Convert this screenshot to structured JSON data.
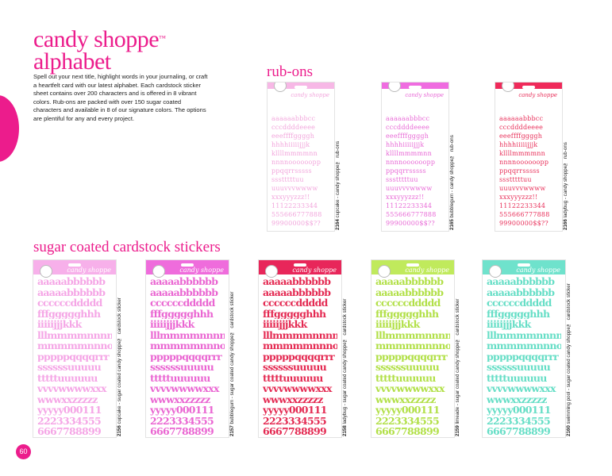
{
  "title_line1": "candy shoppe",
  "title_tm": "™",
  "title_line2": "alphabet",
  "intro": "Spell out your next title, highlight words in your journaling, or craft a heartfelt card with our latest alphabet. Each cardstock sticker sheet contains over 200 characters and is offered in 8 vibrant colors. Rub-ons are packed with over 150 sugar coated characters and available in 8 of our signature colors. The options are plentiful for any and every project.",
  "rubons_heading": "rub-ons",
  "stickers_heading": "sugar coated cardstock stickers",
  "page_number": "60",
  "colors": {
    "accent": "#ec1c8c"
  },
  "rubons": [
    {
      "code": "2164",
      "desc": "cupcake - candy shoppe™ rub-ons",
      "color": "#f2a6dc",
      "header": "#f7b8e6"
    },
    {
      "code": "2165",
      "desc": "bubblegum - candy shoppe™ rub-ons",
      "color": "#e86ad6",
      "header": "#ef6ce0"
    },
    {
      "code": "2166",
      "desc": "ladybug - candy shoppe™ rub-ons",
      "color": "#e8305a",
      "header": "#ef2a5a"
    }
  ],
  "rubon_rows": [
    "aaaaaabbbcc",
    "cccddddeeee",
    "eeeffffggggh",
    "hhhhiiiiijjjk",
    "kllllmmmmnn",
    "nnnnoooooopp",
    "ppqqrrsssss",
    "ssstttttuu",
    "uuuvvvwwww",
    "xxxyyyzzz!!",
    "11122233344",
    "555666777888",
    "99900000$$??"
  ],
  "stickers": [
    {
      "code": "2156",
      "desc": "cupcake - sugar coated candy shoppe™ cardstock sticker",
      "color": "#f5a6e6",
      "header": "#f7b0ea"
    },
    {
      "code": "2157",
      "desc": "bubblegum - sugar coated candy shoppe™ cardstock sticker",
      "color": "#ea66d2",
      "header": "#ef6cdc"
    },
    {
      "code": "2158",
      "desc": "ladybug - sugar coated candy shoppe™ cardstock sticker",
      "color": "#e42a52",
      "header": "#e8265a"
    },
    {
      "code": "2159",
      "desc": "limeade - sugar coated candy shoppe™ cardstock sticker",
      "color": "#b2e048",
      "header": "#c0ea5c"
    },
    {
      "code": "2160",
      "desc": "swimming pool - sugar coated candy shoppe™ cardstock sticker",
      "color": "#66dec6",
      "header": "#6fe2cc"
    }
  ],
  "sticker_rows": [
    "aaaaabbbbbb",
    "aaaaabbbbbb",
    "ccccccddddd",
    "fffggggghhh",
    "iiiiijjjkkk",
    "lllmmmmnnnn",
    "mmmmmnnnooo",
    "pppppqqqqrrr",
    "ssssssuuuuu",
    "tttttuuuuuu",
    "vvvvwwwwxxx",
    "wwwxxzzzzz",
    "yyyyy000111",
    "2223334555",
    "6667788899"
  ],
  "brand_text": "candy shoppe"
}
